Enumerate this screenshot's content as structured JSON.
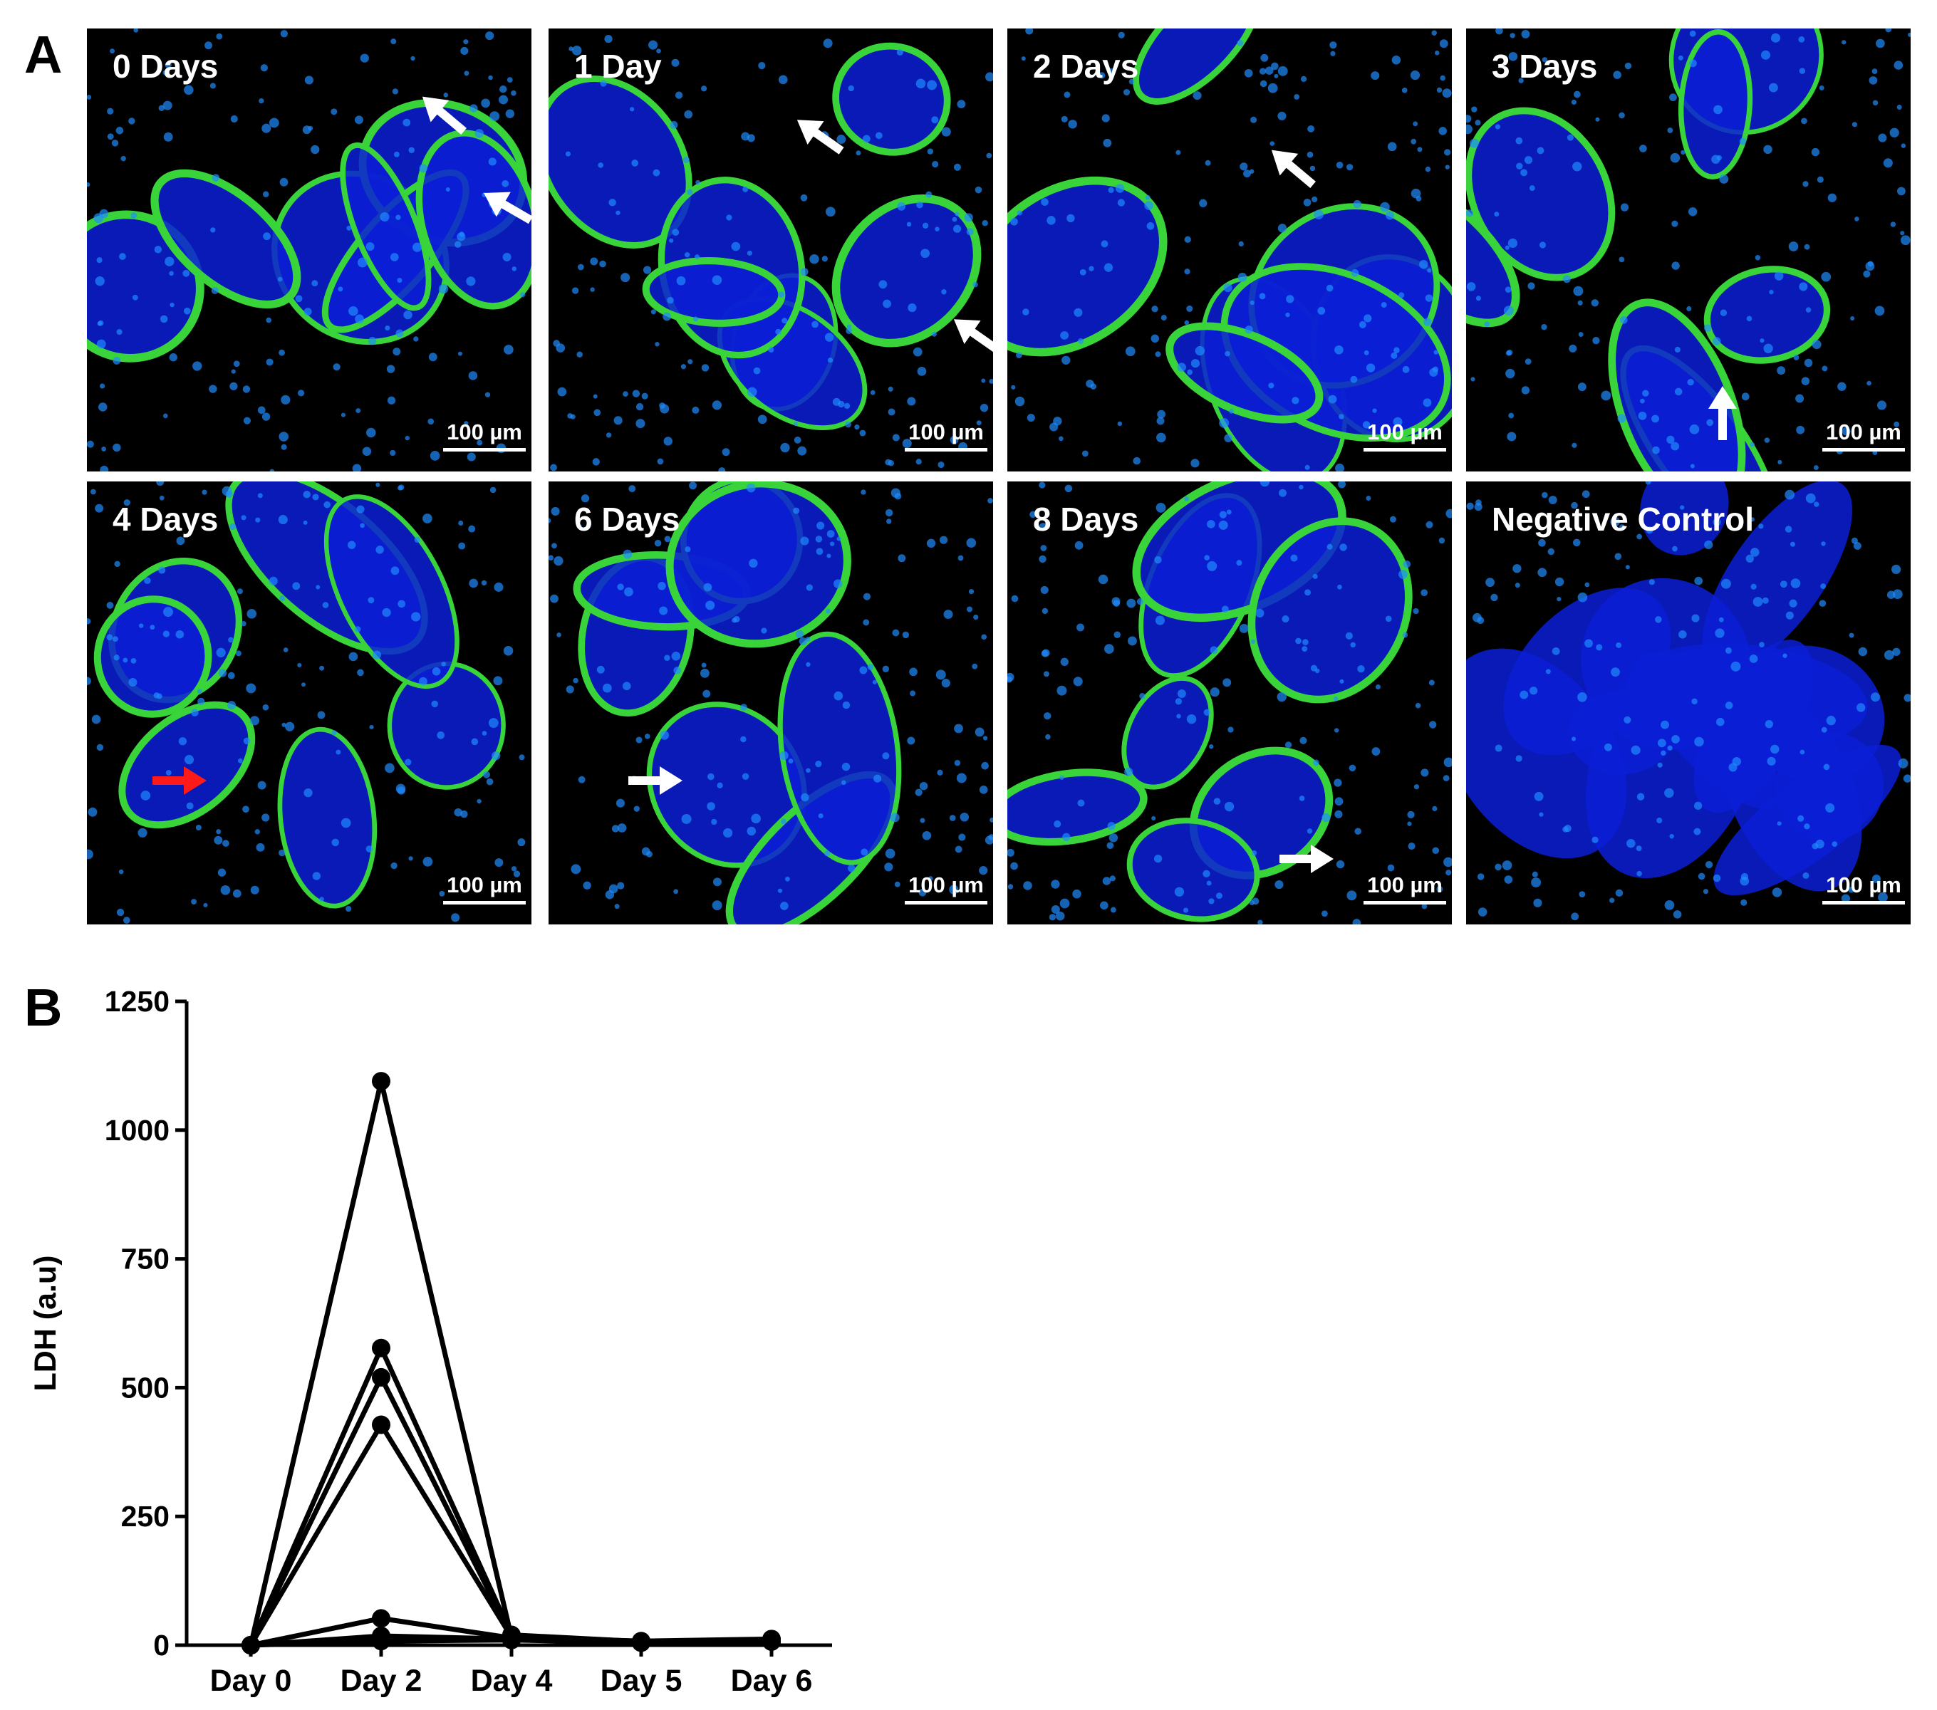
{
  "panel_a": {
    "letter": "A",
    "images": [
      {
        "label": "0 Days",
        "scale_bar": "100 µm"
      },
      {
        "label": "1 Day",
        "scale_bar": "100 µm"
      },
      {
        "label": "2 Days",
        "scale_bar": "100 µm"
      },
      {
        "label": "3 Days",
        "scale_bar": "100 µm"
      },
      {
        "label": "4 Days",
        "scale_bar": "100 µm"
      },
      {
        "label": "6 Days",
        "scale_bar": "100 µm"
      },
      {
        "label": "8 Days",
        "scale_bar": "100 µm"
      },
      {
        "label": "Negative Control",
        "scale_bar": "100 µm"
      }
    ],
    "colors": {
      "tissue": "#0a1fd6",
      "nuclei": "#1f8cff",
      "membrane": "#39d43a",
      "arrow_white": "#ffffff",
      "arrow_red": "#ff1a1a"
    }
  },
  "panel_b": {
    "letter": "B",
    "chart_data": {
      "type": "line",
      "categories": [
        "Day 0",
        "Day 2",
        "Day 4",
        "Day 5",
        "Day 6"
      ],
      "ylabel": "LDH (a.u)",
      "ylim": [
        0,
        1250
      ],
      "yticks": [
        0,
        250,
        500,
        750,
        1000,
        1250
      ],
      "series": [
        {
          "values": [
            0,
            1095,
            15,
            8,
            12
          ]
        },
        {
          "values": [
            0,
            577,
            20,
            7,
            10
          ]
        },
        {
          "values": [
            0,
            520,
            18,
            6,
            9
          ]
        },
        {
          "values": [
            0,
            428,
            16,
            7,
            11
          ]
        },
        {
          "values": [
            0,
            52,
            14,
            6,
            10
          ]
        },
        {
          "values": [
            0,
            18,
            12,
            5,
            8
          ]
        },
        {
          "values": [
            0,
            8,
            10,
            5,
            7
          ]
        }
      ],
      "grid": false,
      "color": "#000000"
    }
  }
}
